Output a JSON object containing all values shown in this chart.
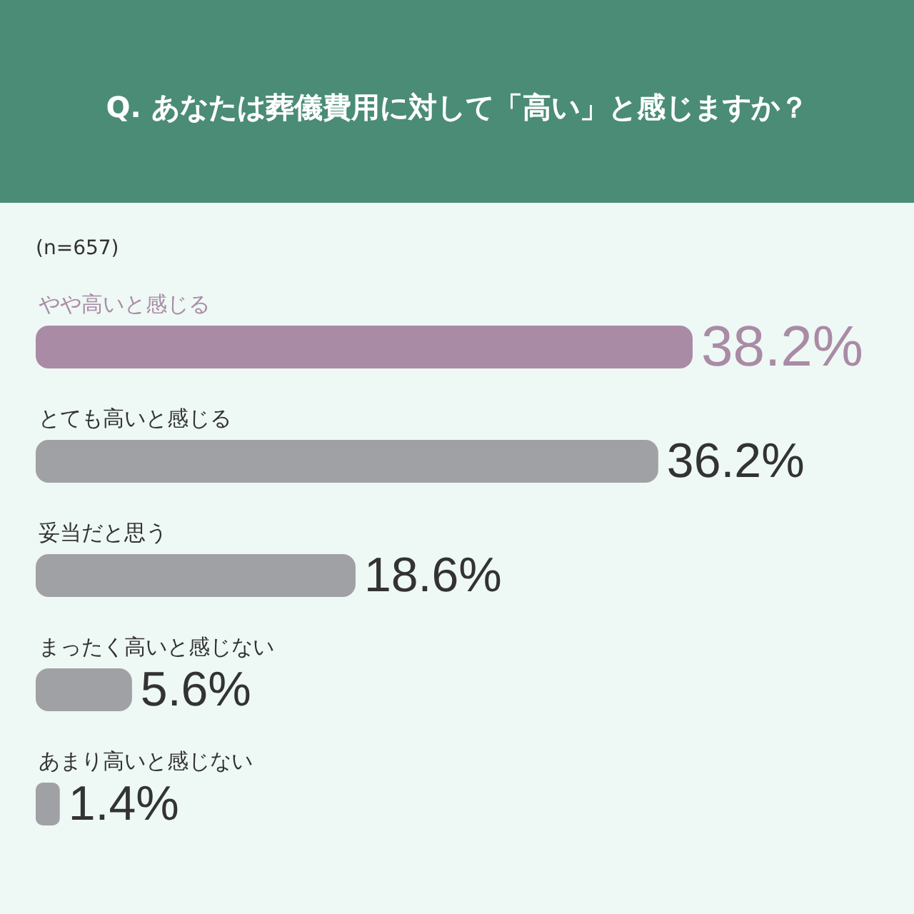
{
  "chart_data": {
    "type": "bar",
    "orientation": "horizontal",
    "title": "Q. あなたは葬儀費用に対して「高い」と感じますか？",
    "subtitle": "(n=657)",
    "categories": [
      "やや高いと感じる",
      "とても高いと感じる",
      "妥当だと思う",
      "まったく高いと感じない",
      "あまり高いと感じない"
    ],
    "values": [
      38.2,
      36.2,
      18.6,
      5.6,
      1.4
    ],
    "colors": [
      "#a98ba6",
      "#a0a1a5",
      "#a0a1a5",
      "#a0a1a5",
      "#a0a1a5"
    ],
    "value_labels": [
      "38.2%",
      "36.2%",
      "18.6%",
      "5.6%",
      "1.4%"
    ]
  }
}
